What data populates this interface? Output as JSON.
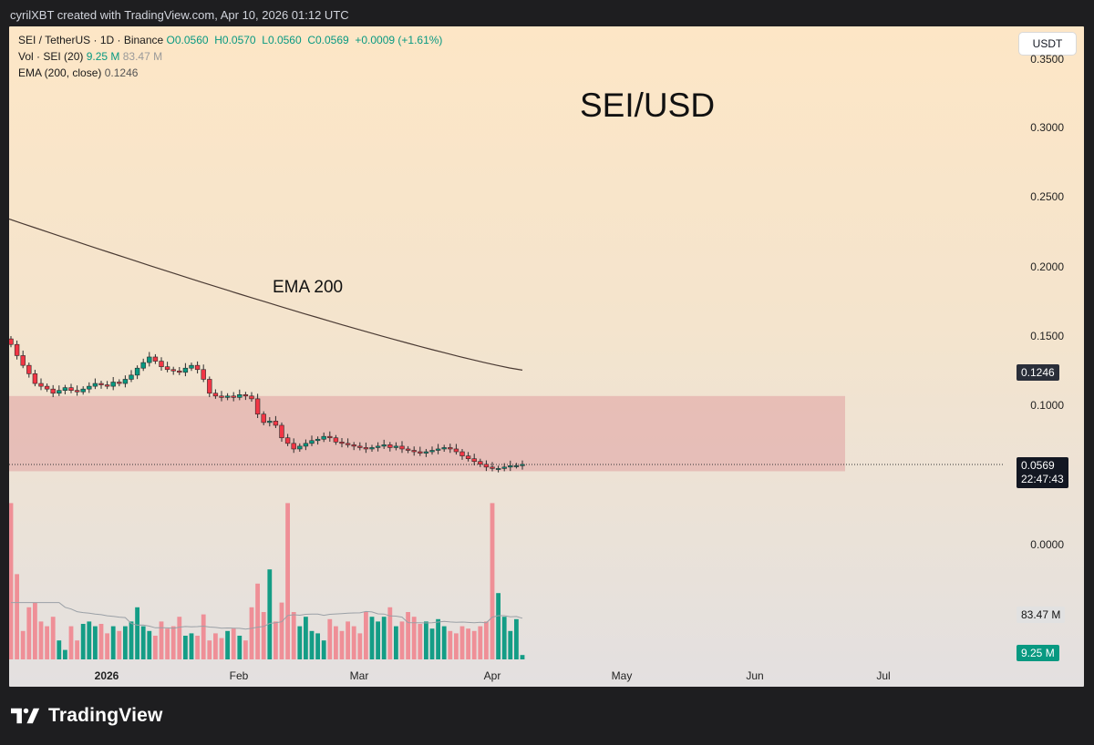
{
  "topbar": {
    "text": "cyrilXBT created with TradingView.com, Apr 10, 2026 01:12 UTC"
  },
  "legend": {
    "symbol_line": "SEI / TetherUS · 1D · Binance",
    "ohlc": "O0.0560  H0.0570  L0.0560  C0.0569  +0.0009 (+1.61%)",
    "vol_label": "Vol · SEI (20)",
    "vol_value": "9.25 M",
    "vol_ma": "83.47 M",
    "ema_label": "EMA (200, close)",
    "ema_value": "0.1246"
  },
  "currency_button": "USDT",
  "annotations": {
    "title": "SEI/USD",
    "ema_note": "EMA 200"
  },
  "price_tags": {
    "ema": "0.1246",
    "last": "0.0569",
    "countdown": "22:47:43",
    "vol_ma": "83.47 M",
    "vol": "9.25 M"
  },
  "logo": {
    "text": "TradingView"
  },
  "colors": {
    "up": "#089981",
    "down": "#f23645",
    "zone": "#e0a0a0"
  },
  "chart_data": {
    "type": "candlestick",
    "title": "SEI/USD",
    "y_axis_labels": [
      "0.3500",
      "0.3000",
      "0.2500",
      "0.2000",
      "0.1500",
      "0.1000",
      "0.0000"
    ],
    "x_axis_labels": [
      "2026",
      "Feb",
      "Mar",
      "Apr",
      "May",
      "Jun",
      "Jul"
    ],
    "ylim": [
      0.0,
      0.36
    ],
    "last_price": 0.0569,
    "ema200": {
      "name": "EMA (200, close)",
      "start": 0.233,
      "end": 0.1246,
      "last": 0.1246
    },
    "support_zone": {
      "low": 0.052,
      "high": 0.106
    },
    "closes": [
      0.143,
      0.135,
      0.128,
      0.122,
      0.115,
      0.113,
      0.111,
      0.108,
      0.11,
      0.112,
      0.11,
      0.109,
      0.111,
      0.113,
      0.115,
      0.114,
      0.113,
      0.116,
      0.115,
      0.118,
      0.121,
      0.126,
      0.13,
      0.134,
      0.131,
      0.127,
      0.125,
      0.124,
      0.123,
      0.126,
      0.128,
      0.125,
      0.118,
      0.108,
      0.106,
      0.105,
      0.106,
      0.105,
      0.107,
      0.106,
      0.104,
      0.093,
      0.087,
      0.088,
      0.085,
      0.076,
      0.072,
      0.068,
      0.07,
      0.072,
      0.074,
      0.075,
      0.077,
      0.076,
      0.073,
      0.072,
      0.071,
      0.07,
      0.069,
      0.068,
      0.069,
      0.07,
      0.071,
      0.069,
      0.07,
      0.068,
      0.067,
      0.066,
      0.065,
      0.066,
      0.067,
      0.068,
      0.069,
      0.068,
      0.066,
      0.063,
      0.061,
      0.059,
      0.057,
      0.055,
      0.054,
      0.054,
      0.055,
      0.056,
      0.056,
      0.0569
    ],
    "volumes_M": [
      330,
      180,
      60,
      110,
      120,
      80,
      70,
      90,
      40,
      20,
      70,
      40,
      75,
      80,
      70,
      75,
      55,
      70,
      60,
      70,
      80,
      110,
      70,
      60,
      50,
      80,
      65,
      70,
      90,
      50,
      55,
      50,
      95,
      40,
      55,
      45,
      60,
      65,
      50,
      40,
      110,
      160,
      100,
      190,
      80,
      120,
      330,
      100,
      70,
      90,
      60,
      55,
      40,
      85,
      70,
      60,
      80,
      70,
      55,
      100,
      90,
      80,
      90,
      110,
      70,
      80,
      100,
      90,
      75,
      80,
      65,
      85,
      70,
      60,
      55,
      70,
      65,
      60,
      70,
      80,
      330,
      140,
      90,
      60,
      85,
      9.25
    ],
    "volume_ma_M": 83.47
  }
}
